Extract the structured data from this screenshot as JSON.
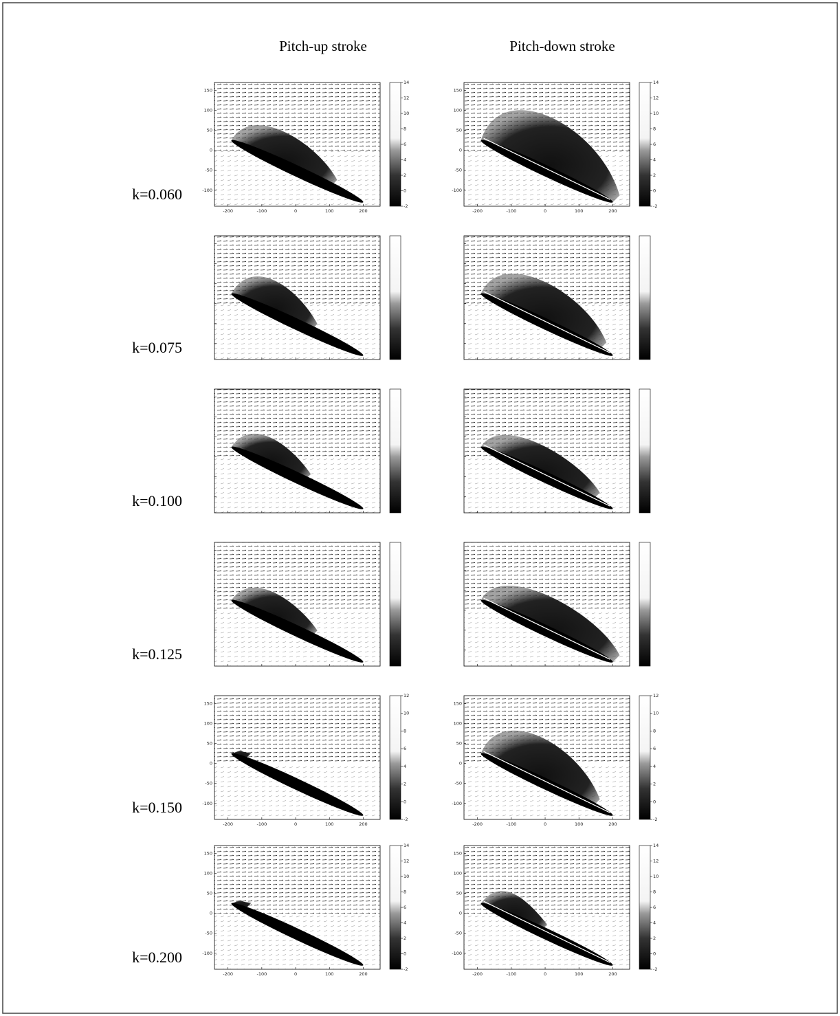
{
  "figure": {
    "columns": [
      "Pitch-up stroke",
      "Pitch-down stroke"
    ],
    "axes": {
      "xlim": [
        -240,
        250
      ],
      "ylim": [
        -140,
        170
      ],
      "xticks": [
        -200,
        -100,
        0,
        100,
        200
      ],
      "yticks": [
        150,
        100,
        50,
        0,
        -50,
        -100
      ]
    },
    "rows": [
      {
        "label": "k=0.060",
        "ticks": true,
        "clim": [
          -2,
          14
        ],
        "colorbar_ticks": [
          14,
          12,
          10,
          8,
          6,
          4,
          2,
          0,
          -2
        ]
      },
      {
        "label": "k=0.075",
        "ticks": false
      },
      {
        "label": "k=0.100",
        "ticks": false
      },
      {
        "label": "k=0.125",
        "ticks": false
      },
      {
        "label": "k=0.150",
        "ticks": true,
        "clim": [
          -2,
          12
        ],
        "colorbar_ticks": [
          12,
          10,
          8,
          6,
          4,
          2,
          0,
          -2
        ]
      },
      {
        "label": "k=0.200",
        "ticks": true,
        "clim": [
          -2,
          14
        ],
        "colorbar_ticks": [
          14,
          12,
          10,
          8,
          6,
          4,
          2,
          0,
          -2
        ]
      }
    ]
  }
}
